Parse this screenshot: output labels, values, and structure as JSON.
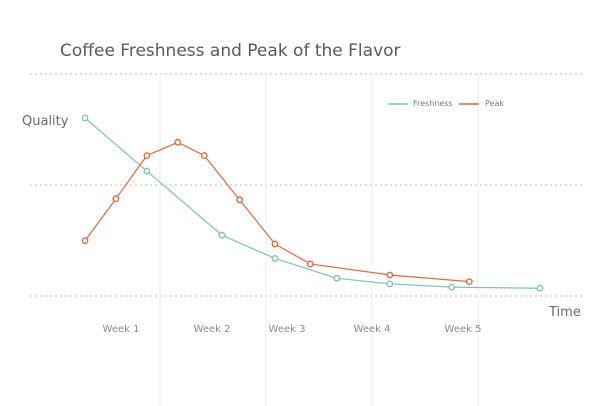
{
  "chart_data": {
    "type": "line",
    "title": "Coffee Freshness and Peak of the Flavor",
    "ylabel": "Quality",
    "xlabel": "Time",
    "categories": [
      "Week 1",
      "Week 2",
      "Week 3",
      "Week 4",
      "Week 5"
    ],
    "xlim": [
      0.15,
      5.9
    ],
    "ylim": [
      0,
      1.65
    ],
    "grid": {
      "horizontal": "dotted",
      "vertical": "solid-light"
    },
    "legend_position": "top-right",
    "series": [
      {
        "name": "Freshness",
        "color": "#7fbfbf",
        "x": [
          0.15,
          0.85,
          1.7,
          2.3,
          3.0,
          3.6,
          4.3,
          5.3
        ],
        "y": [
          1.61,
          1.13,
          0.55,
          0.34,
          0.16,
          0.11,
          0.08,
          0.07
        ]
      },
      {
        "name": "Peak",
        "color": "#e0683f",
        "x": [
          0.15,
          0.5,
          0.85,
          1.2,
          1.5,
          1.9,
          2.3,
          2.7,
          3.6,
          4.5
        ],
        "y": [
          0.5,
          0.88,
          1.27,
          1.39,
          1.27,
          0.87,
          0.47,
          0.29,
          0.19,
          0.13
        ]
      }
    ]
  }
}
